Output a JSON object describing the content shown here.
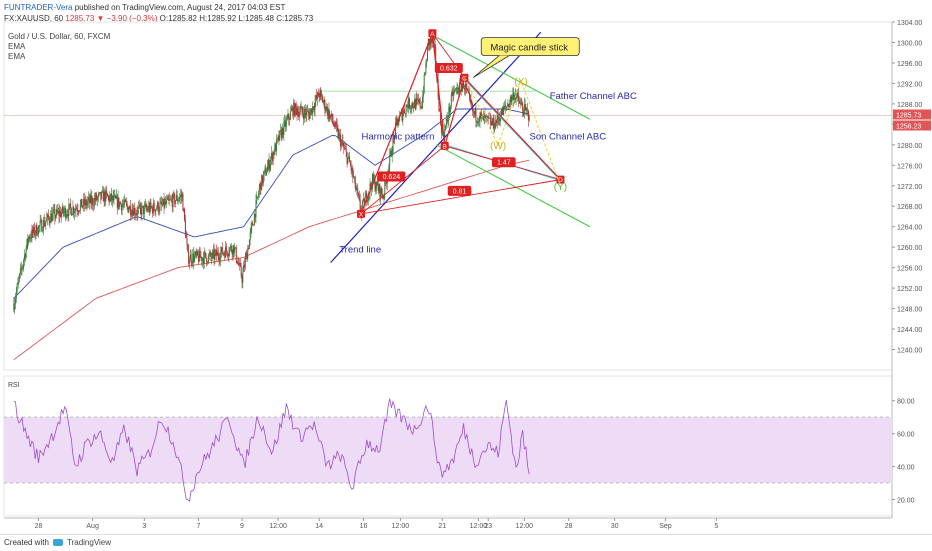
{
  "header": {
    "author": "FUNTRADER-Vera",
    "published": "published on TradingView.com, August 24, 2017 04:03 EST",
    "symbol": "FX:XAUUSD, 60",
    "last": "1285.73",
    "change": "−3.90 (−0.3%)",
    "open": "O:1285.82",
    "high": "H:1285.92",
    "low": "L:1285.48",
    "close": "C:1285.73"
  },
  "legend": {
    "title": "Gold / U.S. Dollar, 60, FXCM",
    "ema1": "EMA",
    "ema2": "EMA"
  },
  "footer": {
    "created": "Created with",
    "brand": "TradingView"
  },
  "colors": {
    "candle_up": "#3a7d3a",
    "candle_down": "#a83232",
    "ema_fast": "#3a4bbf",
    "ema_slow": "#e05555",
    "rsi_line": "#9a4fc9",
    "rsi_band": "#eedcf7",
    "harmonic": "#e02020",
    "trend": "#2020b8",
    "father": "#44cc44",
    "son": "#44c8dd",
    "annotation": "#e8d22a"
  },
  "chart_data": {
    "type": "candlestick",
    "symbol": "XAUUSD",
    "price_axis": {
      "min": 1236,
      "max": 1304,
      "ticks": [
        1240,
        1244,
        1248,
        1252,
        1256,
        1260,
        1264,
        1268,
        1272,
        1276,
        1280,
        1284,
        1288,
        1292,
        1296,
        1300,
        1304
      ]
    },
    "time_axis": {
      "start_bar": -12,
      "end_bar": 1070,
      "ticks": [
        {
          "label": "28",
          "bar": 30
        },
        {
          "label": "Aug",
          "bar": 96
        },
        {
          "label": "3",
          "bar": 159
        },
        {
          "label": "7",
          "bar": 225
        },
        {
          "label": "9",
          "bar": 278
        },
        {
          "label": "12:00",
          "bar": 322
        },
        {
          "label": "14",
          "bar": 372
        },
        {
          "label": "16",
          "bar": 426
        },
        {
          "label": "12:00",
          "bar": 471
        },
        {
          "label": "21",
          "bar": 522
        },
        {
          "label": "12:00",
          "bar": 566
        },
        {
          "label": "23",
          "bar": 578
        },
        {
          "label": "12:00",
          "bar": 622
        },
        {
          "label": "28",
          "bar": 676
        },
        {
          "label": "30",
          "bar": 732
        },
        {
          "label": "Sep",
          "bar": 794
        },
        {
          "label": "5",
          "bar": 856
        }
      ]
    },
    "price_keypoints": [
      [
        0,
        1249
      ],
      [
        18,
        1262
      ],
      [
        45,
        1266
      ],
      [
        80,
        1268
      ],
      [
        110,
        1270
      ],
      [
        150,
        1267
      ],
      [
        180,
        1268
      ],
      [
        205,
        1270
      ],
      [
        212,
        1258
      ],
      [
        240,
        1258
      ],
      [
        268,
        1260
      ],
      [
        278,
        1254
      ],
      [
        300,
        1272
      ],
      [
        325,
        1282
      ],
      [
        340,
        1287
      ],
      [
        360,
        1286
      ],
      [
        372,
        1290
      ],
      [
        390,
        1284
      ],
      [
        410,
        1276
      ],
      [
        423,
        1267
      ],
      [
        437,
        1273
      ],
      [
        450,
        1270
      ],
      [
        466,
        1284
      ],
      [
        480,
        1288
      ],
      [
        497,
        1288
      ],
      [
        505,
        1300
      ],
      [
        512,
        1300
      ],
      [
        520,
        1284
      ],
      [
        524,
        1282
      ],
      [
        535,
        1290
      ],
      [
        548,
        1292
      ],
      [
        560,
        1286
      ],
      [
        572,
        1285
      ],
      [
        585,
        1284
      ],
      [
        598,
        1287
      ],
      [
        610,
        1290
      ],
      [
        620,
        1287
      ],
      [
        628,
        1285.73
      ]
    ],
    "current_price": "1285.73",
    "price_labels": [
      "1285.73",
      "1256.23"
    ],
    "ema_fast_keypoints": [
      [
        0,
        1250
      ],
      [
        60,
        1260
      ],
      [
        150,
        1266
      ],
      [
        220,
        1262
      ],
      [
        280,
        1264
      ],
      [
        340,
        1278
      ],
      [
        390,
        1282
      ],
      [
        440,
        1276
      ],
      [
        500,
        1282
      ],
      [
        540,
        1287
      ],
      [
        600,
        1287
      ],
      [
        628,
        1286
      ]
    ],
    "ema_slow_keypoints": [
      [
        0,
        1238
      ],
      [
        100,
        1250
      ],
      [
        200,
        1256
      ],
      [
        280,
        1258
      ],
      [
        360,
        1264
      ],
      [
        440,
        1268
      ],
      [
        520,
        1272
      ],
      [
        600,
        1276
      ],
      [
        628,
        1277
      ]
    ],
    "rsi": {
      "ticks": [
        20,
        40,
        60,
        80
      ],
      "band": [
        30,
        70
      ],
      "ylim": [
        10,
        95
      ],
      "keypoints": [
        [
          0,
          78
        ],
        [
          15,
          60
        ],
        [
          30,
          45
        ],
        [
          48,
          60
        ],
        [
          62,
          76
        ],
        [
          75,
          40
        ],
        [
          90,
          55
        ],
        [
          105,
          60
        ],
        [
          120,
          42
        ],
        [
          135,
          63
        ],
        [
          150,
          38
        ],
        [
          165,
          48
        ],
        [
          180,
          70
        ],
        [
          195,
          55
        ],
        [
          212,
          20
        ],
        [
          225,
          38
        ],
        [
          242,
          52
        ],
        [
          262,
          70
        ],
        [
          280,
          40
        ],
        [
          298,
          71
        ],
        [
          315,
          48
        ],
        [
          332,
          76
        ],
        [
          348,
          58
        ],
        [
          365,
          66
        ],
        [
          382,
          40
        ],
        [
          398,
          47
        ],
        [
          412,
          27
        ],
        [
          430,
          55
        ],
        [
          445,
          50
        ],
        [
          458,
          77
        ],
        [
          472,
          70
        ],
        [
          488,
          62
        ],
        [
          505,
          78
        ],
        [
          520,
          35
        ],
        [
          535,
          44
        ],
        [
          548,
          63
        ],
        [
          562,
          43
        ],
        [
          578,
          53
        ],
        [
          590,
          48
        ],
        [
          600,
          80
        ],
        [
          612,
          38
        ],
        [
          620,
          60
        ],
        [
          628,
          35
        ]
      ],
      "label": "RSI"
    },
    "harmonic_points": [
      {
        "label": "X",
        "bar": 423,
        "price": 1266.5
      },
      {
        "label": "A",
        "bar": 510,
        "price": 1301.8
      },
      {
        "label": "B",
        "bar": 525,
        "price": 1279.8
      },
      {
        "label": "C",
        "bar": 549,
        "price": 1293.1
      },
      {
        "label": "D",
        "bar": 666,
        "price": 1273.2
      }
    ],
    "ratio_labels": [
      {
        "text": "0.632",
        "bar": 530,
        "price": 1295
      },
      {
        "text": "0.624",
        "bar": 460,
        "price": 1273.8
      },
      {
        "text": "1.47",
        "bar": 597,
        "price": 1276.6
      },
      {
        "text": "0.81",
        "bar": 543,
        "price": 1271
      }
    ],
    "wxy_points": [
      {
        "label": "(W)",
        "bar": 590,
        "price": 1280
      },
      {
        "label": "(X)",
        "bar": 618,
        "price": 1292.5
      },
      {
        "label": "(Y)",
        "bar": 666,
        "price": 1272
      }
    ],
    "annotations": [
      {
        "text": "Magic candle stick",
        "bar": 628,
        "price": 1299
      },
      {
        "text": "Father Channel ABC",
        "bar": 706,
        "price": 1289
      },
      {
        "text": "Son Channel ABC",
        "bar": 675,
        "price": 1281
      },
      {
        "text": "Harmonic pattern",
        "bar": 468,
        "price": 1281
      },
      {
        "text": "Trend line",
        "bar": 422,
        "price": 1259
      }
    ],
    "trend_line": [
      [
        386,
        1257
      ],
      [
        642,
        1302
      ]
    ],
    "father_channel": {
      "upper": [
        [
          515,
          1301
        ],
        [
          702,
          1285
        ]
      ],
      "lower": [
        [
          515,
          1280
        ],
        [
          702,
          1264
        ]
      ]
    },
    "son_channel": {
      "upper": [
        [
          548,
          1293
        ],
        [
          666,
          1273
        ]
      ],
      "lower": [
        [
          525,
          1280
        ],
        [
          666,
          1273
        ]
      ]
    },
    "resistance_line": [
      [
        372,
        1290.5
      ],
      [
        635,
        1290.5
      ]
    ],
    "current_line_price": 1285.73
  }
}
